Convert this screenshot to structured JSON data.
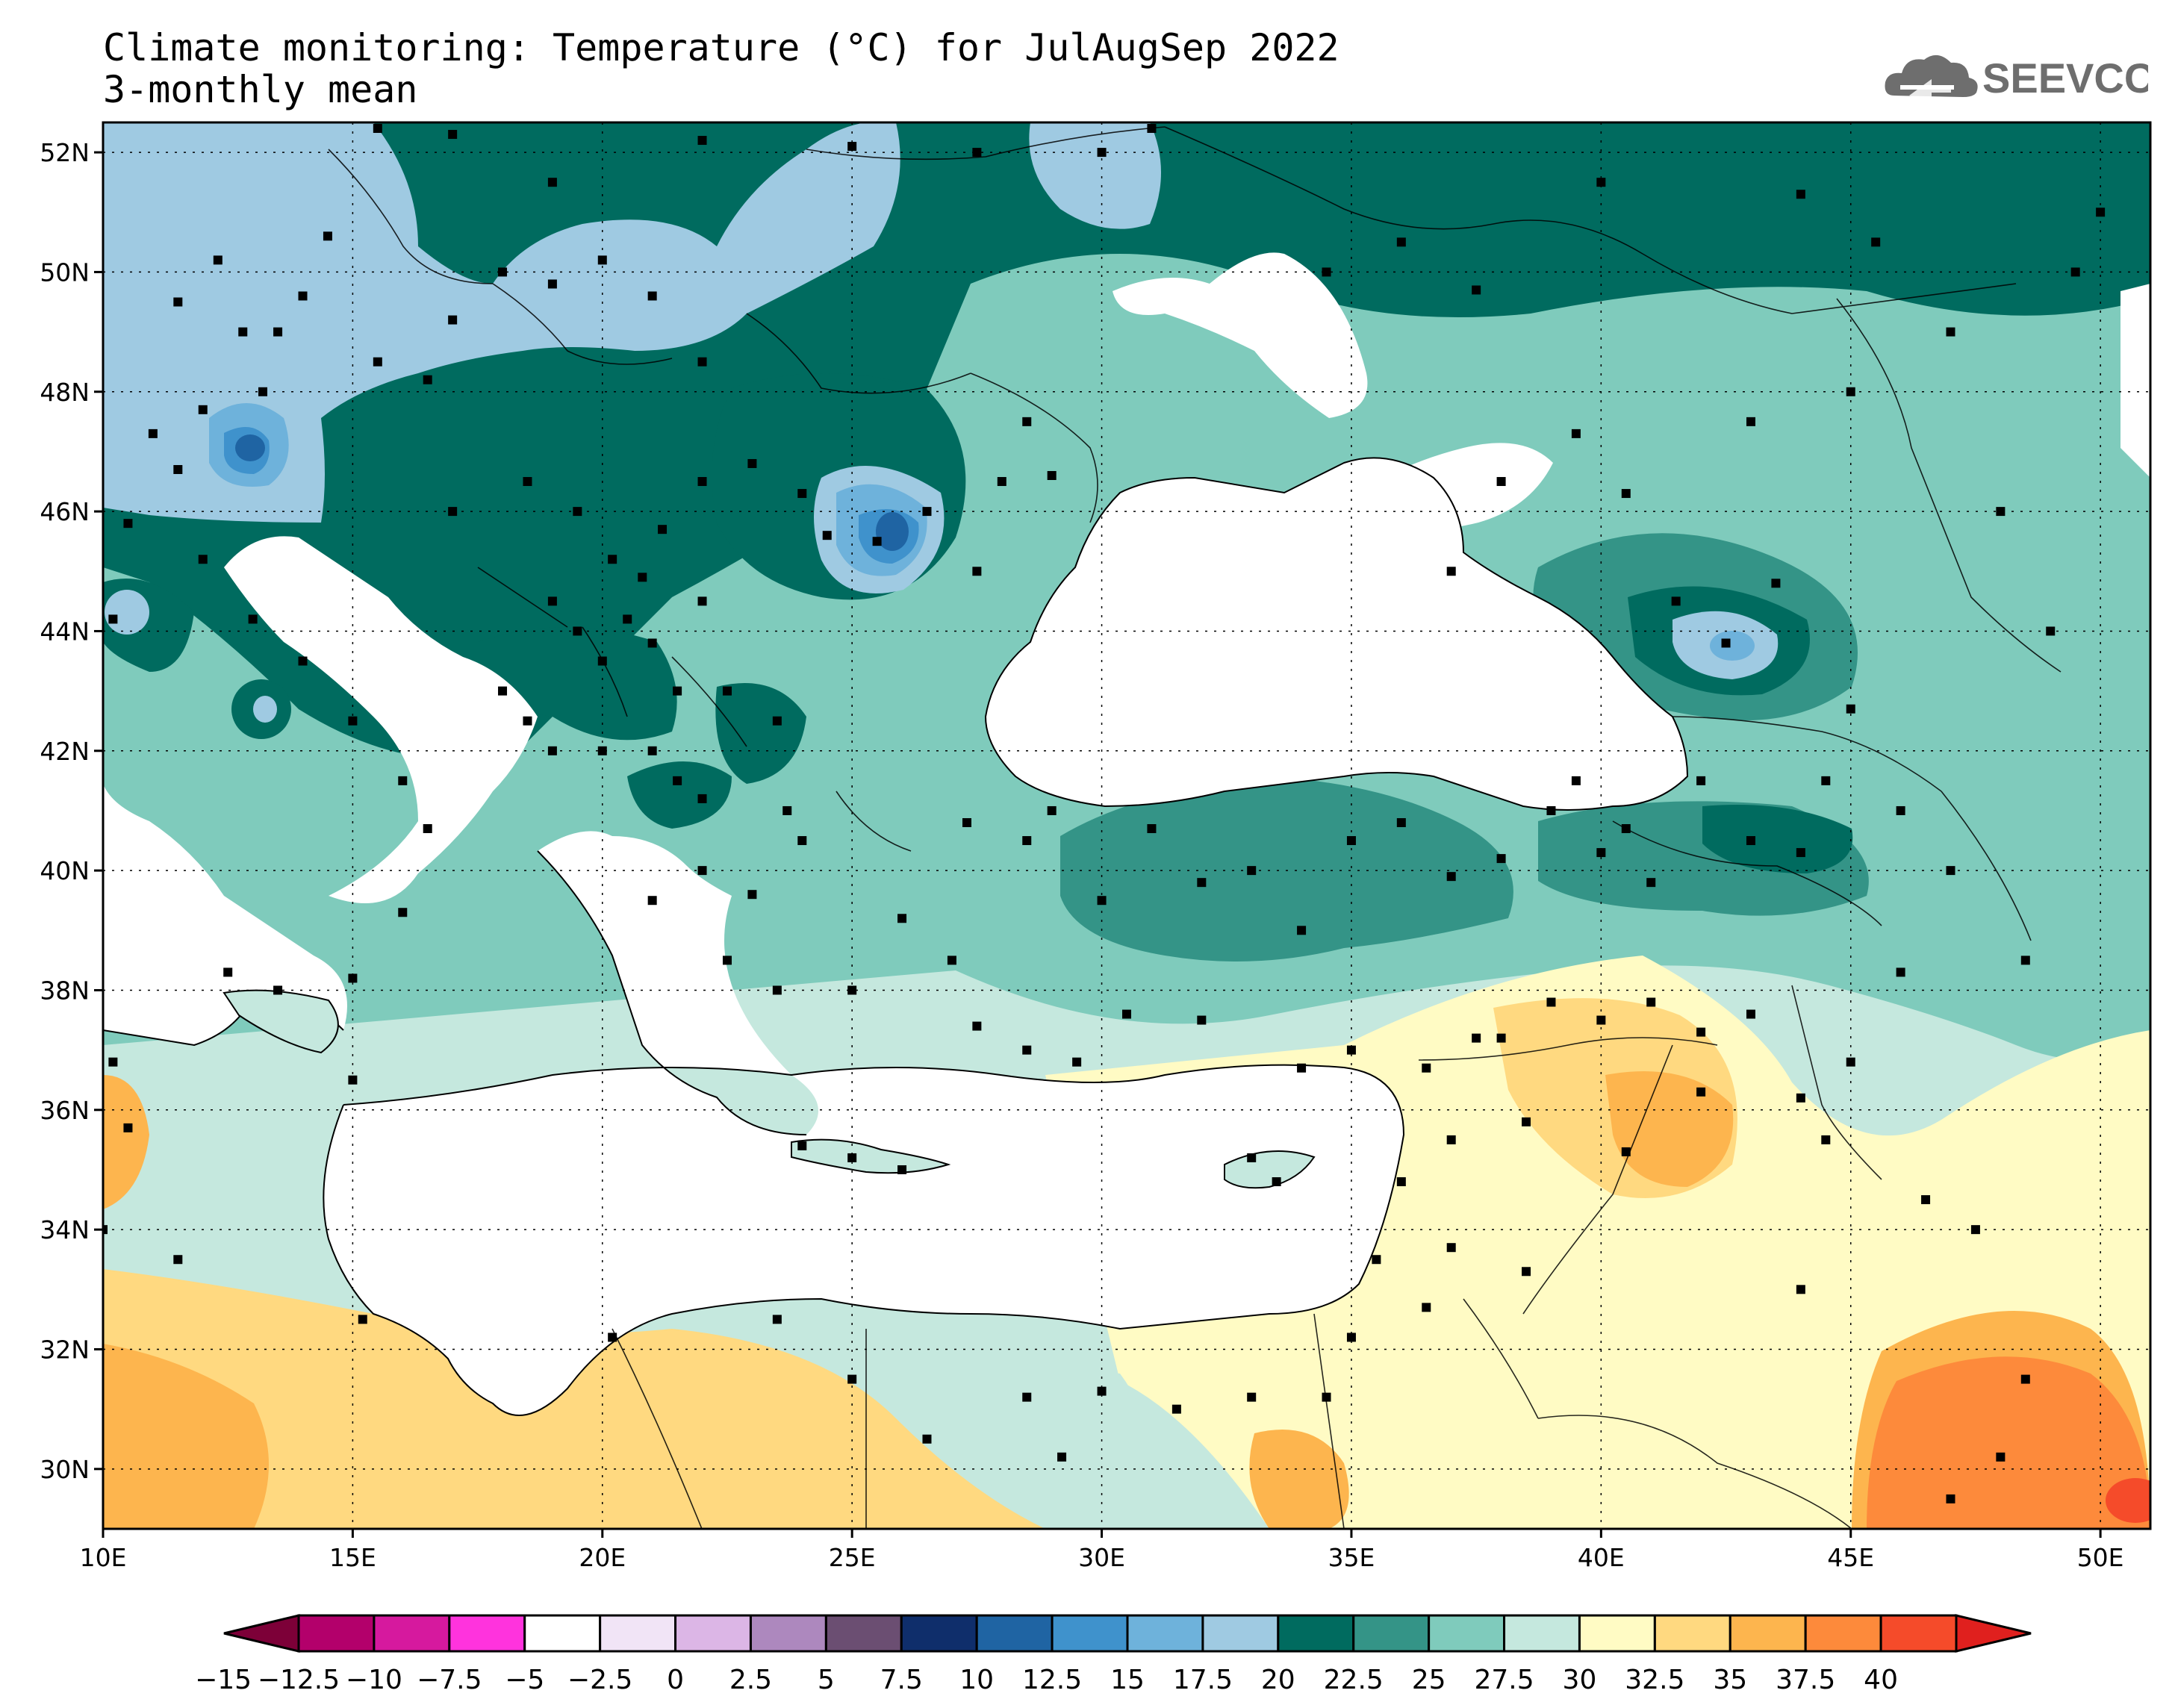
{
  "title_line1": "Climate monitoring: Temperature (°C) for JulAugSep 2022",
  "title_line2": "3-monthly mean",
  "logo_text": "SEEVCCC",
  "map": {
    "lon_min": 10,
    "lon_max": 51,
    "lat_min": 29,
    "lat_max": 52.5,
    "lon_ticks": [
      {
        "value": 10,
        "label": "10E"
      },
      {
        "value": 15,
        "label": "15E"
      },
      {
        "value": 20,
        "label": "20E"
      },
      {
        "value": 25,
        "label": "25E"
      },
      {
        "value": 30,
        "label": "30E"
      },
      {
        "value": 35,
        "label": "35E"
      },
      {
        "value": 40,
        "label": "40E"
      },
      {
        "value": 45,
        "label": "45E"
      },
      {
        "value": 50,
        "label": "50E"
      }
    ],
    "lat_ticks": [
      {
        "value": 30,
        "label": "30N"
      },
      {
        "value": 32,
        "label": "32N"
      },
      {
        "value": 34,
        "label": "34N"
      },
      {
        "value": 36,
        "label": "36N"
      },
      {
        "value": 38,
        "label": "38N"
      },
      {
        "value": 40,
        "label": "40N"
      },
      {
        "value": 42,
        "label": "42N"
      },
      {
        "value": 44,
        "label": "44N"
      },
      {
        "value": 46,
        "label": "46N"
      },
      {
        "value": 48,
        "label": "48N"
      },
      {
        "value": 50,
        "label": "50N"
      },
      {
        "value": 52,
        "label": "52N"
      }
    ]
  },
  "colorbar": {
    "labels": [
      "−15",
      "−12.5",
      "−10",
      "−7.5",
      "−5",
      "−2.5",
      "0",
      "2.5",
      "5",
      "7.5",
      "10",
      "12.5",
      "15",
      "17.5",
      "20",
      "22.5",
      "25",
      "27.5",
      "30",
      "32.5",
      "35",
      "37.5",
      "40"
    ],
    "colors": [
      "#b3006b",
      "#d6199e",
      "#ff33dd",
      "#ffffff",
      "#f1e4f6",
      "#dcb6e6",
      "#ad88be",
      "#6b4e72",
      "#0f2e6b",
      "#1f64a3",
      "#3f92cc",
      "#6eb2db",
      "#9fcae2",
      "#006b5f",
      "#349487",
      "#7fcbbc",
      "#c5e8de",
      "#fffbc4",
      "#ffd980",
      "#fdb54e",
      "#fd8a3b",
      "#f54b2a"
    ],
    "under_color": "#7d0038",
    "over_color": "#e0201e"
  },
  "palette": {
    "t15": "#9fcae2",
    "t12": "#6eb2db",
    "t10": "#3f92cc",
    "t7": "#1f64a3",
    "t17": "#006b5f",
    "t20": "#349487",
    "t22": "#7fcbbc",
    "t25": "#c5e8de",
    "t27": "#fffbc4",
    "t30": "#ffd980",
    "t32": "#fdb54e",
    "t35": "#fd8a3b",
    "t37": "#f54b2a"
  },
  "stations": [
    [
      10.2,
      44.2
    ],
    [
      10.5,
      45.8
    ],
    [
      11,
      47.3
    ],
    [
      11.5,
      49.5
    ],
    [
      12.3,
      50.2
    ],
    [
      12.8,
      49
    ],
    [
      13.2,
      48
    ],
    [
      14,
      49.6
    ],
    [
      14.5,
      50.6
    ],
    [
      15.5,
      48.5
    ],
    [
      16.5,
      48.2
    ],
    [
      17,
      49.2
    ],
    [
      18,
      50
    ],
    [
      19,
      49.8
    ],
    [
      20,
      50.2
    ],
    [
      21,
      49.6
    ],
    [
      22,
      48.5
    ],
    [
      17,
      46
    ],
    [
      18.5,
      46.5
    ],
    [
      19.5,
      46
    ],
    [
      20.2,
      45.2
    ],
    [
      20.8,
      44.9
    ],
    [
      21.2,
      45.7
    ],
    [
      22,
      46.5
    ],
    [
      23,
      46.8
    ],
    [
      24,
      46.3
    ],
    [
      24.5,
      45.6
    ],
    [
      25.5,
      45.5
    ],
    [
      26.5,
      46
    ],
    [
      27.5,
      45
    ],
    [
      28,
      46.5
    ],
    [
      28.5,
      47.5
    ],
    [
      29,
      46.6
    ],
    [
      19,
      44.5
    ],
    [
      19.5,
      44
    ],
    [
      20,
      43.5
    ],
    [
      20.5,
      44.2
    ],
    [
      21,
      43.8
    ],
    [
      21.5,
      43
    ],
    [
      22,
      44.5
    ],
    [
      22.5,
      43
    ],
    [
      18,
      43
    ],
    [
      18.5,
      42.5
    ],
    [
      19,
      42
    ],
    [
      20,
      42
    ],
    [
      21,
      42
    ],
    [
      21.5,
      41.5
    ],
    [
      22,
      41.2
    ],
    [
      23.5,
      42.5
    ],
    [
      23.7,
      41
    ],
    [
      24,
      40.5
    ],
    [
      23,
      39.6
    ],
    [
      22,
      40
    ],
    [
      21,
      39.5
    ],
    [
      22.5,
      38.5
    ],
    [
      23.5,
      38
    ],
    [
      25,
      38
    ],
    [
      26,
      39.2
    ],
    [
      27,
      38.5
    ],
    [
      27.3,
      40.8
    ],
    [
      28.5,
      40.5
    ],
    [
      29,
      41
    ],
    [
      30,
      39.5
    ],
    [
      31,
      40.7
    ],
    [
      32,
      39.8
    ],
    [
      33,
      40
    ],
    [
      34,
      39
    ],
    [
      35,
      40.5
    ],
    [
      36,
      40.8
    ],
    [
      37,
      39.9
    ],
    [
      38,
      40.2
    ],
    [
      39,
      41
    ],
    [
      40,
      40.3
    ],
    [
      41,
      39.8
    ],
    [
      42,
      41.5
    ],
    [
      43,
      40.5
    ],
    [
      44,
      40.3
    ],
    [
      44.5,
      41.5
    ],
    [
      41.5,
      44.5
    ],
    [
      42.5,
      43.8
    ],
    [
      43.5,
      44.8
    ],
    [
      45,
      42.7
    ],
    [
      46,
      41
    ],
    [
      47,
      40
    ],
    [
      48.5,
      38.5
    ],
    [
      49,
      44
    ],
    [
      48,
      46
    ],
    [
      37,
      45
    ],
    [
      38,
      46.5
    ],
    [
      39.5,
      47.3
    ],
    [
      40.5,
      46.3
    ],
    [
      43,
      47.5
    ],
    [
      45,
      48
    ],
    [
      47,
      49
    ],
    [
      49.5,
      50
    ],
    [
      50,
      51
    ],
    [
      37.5,
      49.7
    ],
    [
      40,
      51.5
    ],
    [
      44,
      51.3
    ],
    [
      45.5,
      50.5
    ],
    [
      34.5,
      50
    ],
    [
      36,
      50.5
    ],
    [
      30,
      52
    ],
    [
      31,
      52.4
    ],
    [
      27.5,
      52
    ],
    [
      25,
      52.1
    ],
    [
      22,
      52.2
    ],
    [
      19,
      51.5
    ],
    [
      17,
      52.3
    ],
    [
      15.5,
      52.4
    ],
    [
      13.5,
      49
    ],
    [
      12,
      47.7
    ],
    [
      11.5,
      46.7
    ],
    [
      12,
      45.2
    ],
    [
      13,
      44.2
    ],
    [
      14,
      43.5
    ],
    [
      15,
      42.5
    ],
    [
      16,
      41.5
    ],
    [
      16.5,
      40.7
    ],
    [
      16,
      39.3
    ],
    [
      15,
      38.2
    ],
    [
      13.5,
      38
    ],
    [
      12.5,
      38.3
    ],
    [
      15,
      36.5
    ],
    [
      10.2,
      36.8
    ],
    [
      10.5,
      35.7
    ],
    [
      10,
      34
    ],
    [
      11.5,
      33.5
    ],
    [
      15.2,
      32.5
    ],
    [
      20.2,
      32.2
    ],
    [
      23.5,
      32.5
    ],
    [
      25,
      31.5
    ],
    [
      26.5,
      30.5
    ],
    [
      28.5,
      31.2
    ],
    [
      29.2,
      30.2
    ],
    [
      30,
      31.3
    ],
    [
      31.5,
      31
    ],
    [
      33,
      31.2
    ],
    [
      34.5,
      31.2
    ],
    [
      35,
      32.2
    ],
    [
      35.5,
      33.5
    ],
    [
      36.5,
      32.7
    ],
    [
      37,
      33.7
    ],
    [
      38.5,
      33.3
    ],
    [
      36,
      34.8
    ],
    [
      37,
      35.5
    ],
    [
      36.5,
      36.7
    ],
    [
      35,
      37
    ],
    [
      34,
      36.7
    ],
    [
      32,
      37.5
    ],
    [
      30.5,
      37.6
    ],
    [
      29.5,
      36.8
    ],
    [
      28.5,
      37
    ],
    [
      27.5,
      37.4
    ],
    [
      26,
      35
    ],
    [
      25,
      35.2
    ],
    [
      24,
      35.4
    ],
    [
      33,
      35.2
    ],
    [
      33.5,
      34.8
    ],
    [
      38,
      37.2
    ],
    [
      39,
      37.8
    ],
    [
      40,
      37.5
    ],
    [
      41,
      37.8
    ],
    [
      42,
      37.3
    ],
    [
      43,
      37.6
    ],
    [
      44,
      36.2
    ],
    [
      44.5,
      35.5
    ],
    [
      45,
      36.8
    ],
    [
      46,
      38.3
    ],
    [
      46.5,
      34.5
    ],
    [
      47.5,
      34
    ],
    [
      48.5,
      31.5
    ],
    [
      48,
      30.2
    ],
    [
      47,
      29.5
    ],
    [
      44,
      33
    ],
    [
      42,
      36.3
    ],
    [
      40.5,
      35.3
    ],
    [
      38.5,
      35.8
    ],
    [
      37.5,
      37.2
    ],
    [
      39.5,
      41.5
    ],
    [
      40.5,
      40.7
    ]
  ]
}
